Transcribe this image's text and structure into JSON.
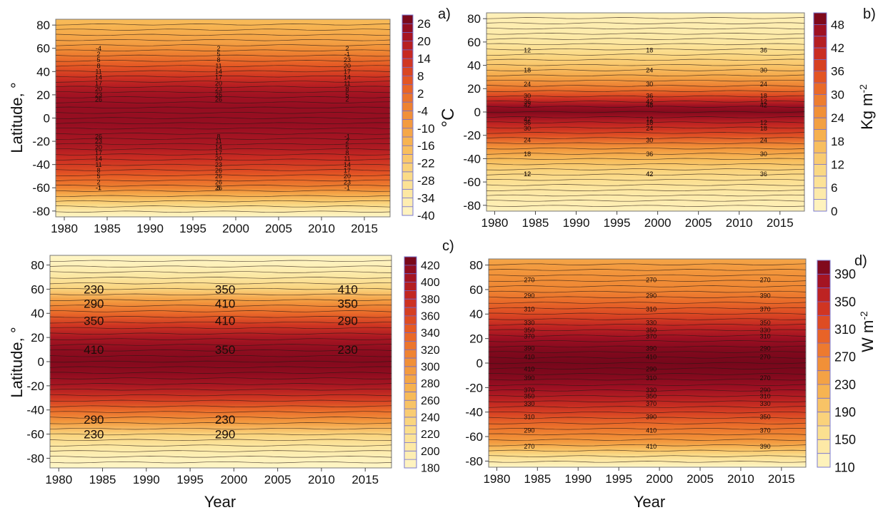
{
  "figure": {
    "panels": [
      {
        "id": "a",
        "panel_label": "a)",
        "ylabel": "Latitude, °",
        "xlabel": "",
        "colorbar_unit": "°C",
        "x_ticks": [
          "1980",
          "1985",
          "1990",
          "1995",
          "2000",
          "2005",
          "2010",
          "2015"
        ],
        "y_ticks": [
          "80",
          "60",
          "40",
          "20",
          "0",
          "-20",
          "-40",
          "-60",
          "-80"
        ],
        "colorbar_ticks": [
          "26",
          "20",
          "14",
          "8",
          "2",
          "-4",
          "-10",
          "-16",
          "-22",
          "-28",
          "-34",
          "-40"
        ],
        "contour_labels": [
          {
            "text": "-4"
          },
          {
            "text": "2"
          },
          {
            "text": "5"
          },
          {
            "text": "8"
          },
          {
            "text": "11"
          },
          {
            "text": "14"
          },
          {
            "text": "17"
          },
          {
            "text": "20"
          },
          {
            "text": "23"
          },
          {
            "text": "26"
          },
          {
            "text": "-1"
          },
          {
            "text": "2"
          },
          {
            "text": "5"
          },
          {
            "text": "8"
          },
          {
            "text": "11"
          },
          {
            "text": "14"
          },
          {
            "text": "17"
          },
          {
            "text": "20"
          },
          {
            "text": "23"
          },
          {
            "text": "26"
          },
          {
            "text": "-1"
          },
          {
            "text": "2"
          },
          {
            "text": "5"
          },
          {
            "text": "8"
          },
          {
            "text": "11"
          },
          {
            "text": "14"
          },
          {
            "text": "17"
          },
          {
            "text": "20"
          },
          {
            "text": "23"
          },
          {
            "text": "26"
          },
          {
            "text": "26"
          },
          {
            "text": "26"
          },
          {
            "text": "26"
          },
          {
            "text": "26"
          },
          {
            "text": "26"
          },
          {
            "text": "23"
          },
          {
            "text": "20"
          },
          {
            "text": "17"
          },
          {
            "text": "14"
          },
          {
            "text": "11"
          },
          {
            "text": "8"
          },
          {
            "text": "5"
          },
          {
            "text": "2"
          },
          {
            "text": "-1"
          },
          {
            "text": "23"
          },
          {
            "text": "20"
          },
          {
            "text": "17"
          },
          {
            "text": "14"
          },
          {
            "text": "11"
          },
          {
            "text": "8"
          },
          {
            "text": "5"
          },
          {
            "text": "2"
          },
          {
            "text": "-1"
          },
          {
            "text": "23"
          },
          {
            "text": "20"
          },
          {
            "text": "17"
          },
          {
            "text": "14"
          },
          {
            "text": "11"
          },
          {
            "text": "8"
          },
          {
            "text": "5"
          },
          {
            "text": "2"
          },
          {
            "text": "-1"
          }
        ]
      },
      {
        "id": "b",
        "panel_label": "b)",
        "ylabel": "",
        "xlabel": "",
        "colorbar_unit": "Kg m",
        "colorbar_unit_sup": "-2",
        "x_ticks": [
          "1980",
          "1985",
          "1990",
          "1995",
          "2000",
          "2005",
          "2010",
          "2015"
        ],
        "y_ticks": [
          "80",
          "60",
          "40",
          "20",
          "0",
          "-20",
          "-40",
          "-60",
          "-80"
        ],
        "colorbar_ticks": [
          "48",
          "42",
          "36",
          "30",
          "24",
          "18",
          "12",
          "6",
          "0"
        ],
        "contour_labels": [
          {
            "text": "12"
          },
          {
            "text": "18"
          },
          {
            "text": "24"
          },
          {
            "text": "30"
          },
          {
            "text": "36"
          },
          {
            "text": "42"
          },
          {
            "text": "12"
          },
          {
            "text": "18"
          },
          {
            "text": "24"
          },
          {
            "text": "30"
          },
          {
            "text": "36"
          },
          {
            "text": "42"
          },
          {
            "text": "12"
          },
          {
            "text": "18"
          },
          {
            "text": "24"
          },
          {
            "text": "30"
          },
          {
            "text": "36"
          },
          {
            "text": "42"
          },
          {
            "text": "48"
          },
          {
            "text": "42"
          },
          {
            "text": "36"
          },
          {
            "text": "30"
          },
          {
            "text": "24"
          },
          {
            "text": "18"
          },
          {
            "text": "12"
          },
          {
            "text": "42"
          },
          {
            "text": "36"
          },
          {
            "text": "30"
          },
          {
            "text": "24"
          },
          {
            "text": "18"
          },
          {
            "text": "12"
          },
          {
            "text": "42"
          },
          {
            "text": "36"
          },
          {
            "text": "30"
          },
          {
            "text": "24"
          },
          {
            "text": "18"
          },
          {
            "text": "12"
          }
        ]
      },
      {
        "id": "c",
        "panel_label": "c)",
        "ylabel": "Latitude, °",
        "xlabel": "Year",
        "colorbar_unit": "",
        "x_ticks": [
          "1980",
          "1985",
          "1990",
          "1995",
          "2000",
          "2005",
          "2010",
          "2015"
        ],
        "y_ticks": [
          "80",
          "60",
          "40",
          "20",
          "0",
          "-20",
          "-40",
          "-60",
          "-80"
        ],
        "colorbar_ticks": [
          "420",
          "400",
          "380",
          "360",
          "340",
          "320",
          "300",
          "280",
          "260",
          "240",
          "220",
          "200",
          "180"
        ],
        "contour_labels": [
          {
            "text": "230"
          },
          {
            "text": "290"
          },
          {
            "text": "350"
          },
          {
            "text": "410"
          },
          {
            "text": "230"
          },
          {
            "text": "290"
          },
          {
            "text": "350"
          },
          {
            "text": "410"
          },
          {
            "text": "410"
          },
          {
            "text": "350"
          },
          {
            "text": "290"
          },
          {
            "text": "230"
          },
          {
            "text": "410"
          },
          {
            "text": "350"
          },
          {
            "text": "290"
          },
          {
            "text": "230"
          }
        ]
      },
      {
        "id": "d",
        "panel_label": "d)",
        "ylabel": "",
        "xlabel": "Year",
        "colorbar_unit": "W m",
        "colorbar_unit_sup": "-2",
        "x_ticks": [
          "1980",
          "1985",
          "1990",
          "1995",
          "2000",
          "2005",
          "2010",
          "2015"
        ],
        "y_ticks": [
          "80",
          "60",
          "40",
          "20",
          "0",
          "-20",
          "-40",
          "-60",
          "-80"
        ],
        "colorbar_ticks": [
          "390",
          "350",
          "310",
          "270",
          "230",
          "190",
          "150",
          "110"
        ],
        "contour_labels": [
          {
            "text": "270"
          },
          {
            "text": "290"
          },
          {
            "text": "310"
          },
          {
            "text": "330"
          },
          {
            "text": "350"
          },
          {
            "text": "370"
          },
          {
            "text": "390"
          },
          {
            "text": "410"
          },
          {
            "text": "270"
          },
          {
            "text": "290"
          },
          {
            "text": "310"
          },
          {
            "text": "330"
          },
          {
            "text": "350"
          },
          {
            "text": "370"
          },
          {
            "text": "390"
          },
          {
            "text": "410"
          },
          {
            "text": "270"
          },
          {
            "text": "290"
          },
          {
            "text": "310"
          },
          {
            "text": "330"
          },
          {
            "text": "350"
          },
          {
            "text": "370"
          },
          {
            "text": "390"
          },
          {
            "text": "410"
          },
          {
            "text": "410"
          },
          {
            "text": "410"
          },
          {
            "text": "390"
          },
          {
            "text": "370"
          },
          {
            "text": "350"
          },
          {
            "text": "330"
          },
          {
            "text": "310"
          },
          {
            "text": "290"
          },
          {
            "text": "270"
          },
          {
            "text": "390"
          },
          {
            "text": "370"
          },
          {
            "text": "350"
          },
          {
            "text": "330"
          },
          {
            "text": "310"
          },
          {
            "text": "290"
          },
          {
            "text": "270"
          },
          {
            "text": "390"
          },
          {
            "text": "370"
          },
          {
            "text": "350"
          },
          {
            "text": "330"
          },
          {
            "text": "310"
          },
          {
            "text": "290"
          },
          {
            "text": "270"
          }
        ]
      }
    ]
  },
  "chart_data": [
    {
      "type": "heatmap",
      "panel": "a)",
      "title": "",
      "xlabel": "",
      "ylabel": "Latitude, °",
      "colorbar_label": "°C",
      "xlim": [
        1979,
        2018
      ],
      "ylim": [
        -85,
        85
      ],
      "clim": [
        -40,
        32
      ],
      "latitude_profile": {
        "lat": [
          -85,
          -80,
          -75,
          -70,
          -65,
          -60,
          -55,
          -50,
          -45,
          -40,
          -35,
          -30,
          -25,
          -20,
          -15,
          -10,
          -5,
          0,
          5,
          10,
          15,
          20,
          25,
          30,
          35,
          40,
          45,
          50,
          55,
          60,
          65,
          70,
          75,
          80,
          85
        ],
        "value": [
          -40,
          -34,
          -26,
          -18,
          -10,
          -1,
          3,
          7,
          11,
          14,
          17,
          20,
          23,
          24,
          25,
          26,
          27,
          27,
          27,
          27,
          26,
          25,
          23,
          20,
          16,
          12,
          8,
          4,
          0,
          -4,
          -8,
          -10,
          -12,
          -14,
          -16
        ]
      },
      "contour_levels": [
        -4,
        -1,
        2,
        5,
        8,
        11,
        14,
        17,
        20,
        23,
        26
      ],
      "colors": {
        "low": "#fdf3c0",
        "high": "#7a0618"
      }
    },
    {
      "type": "heatmap",
      "panel": "b)",
      "title": "",
      "xlabel": "",
      "ylabel": "",
      "colorbar_label": "Kg m-2",
      "xlim": [
        1979,
        2018
      ],
      "ylim": [
        -85,
        85
      ],
      "clim": [
        0,
        52
      ],
      "latitude_profile": {
        "lat": [
          -85,
          -80,
          -70,
          -60,
          -50,
          -40,
          -30,
          -20,
          -15,
          -10,
          -5,
          0,
          5,
          10,
          15,
          20,
          30,
          40,
          50,
          60,
          70,
          80,
          85
        ],
        "value": [
          2,
          3,
          5,
          8,
          12,
          18,
          26,
          36,
          40,
          43,
          47,
          50,
          48,
          42,
          36,
          30,
          22,
          15,
          10,
          6,
          4,
          3,
          2
        ]
      },
      "contour_levels": [
        12,
        18,
        24,
        30,
        36,
        42,
        48
      ],
      "colors": {
        "low": "#fdf3c0",
        "high": "#7a0618"
      }
    },
    {
      "type": "heatmap",
      "panel": "c)",
      "title": "",
      "xlabel": "Year",
      "ylabel": "Latitude, °",
      "colorbar_label": "",
      "xlim": [
        1979,
        2018
      ],
      "ylim": [
        -88,
        88
      ],
      "clim": [
        170,
        430
      ],
      "latitude_profile": {
        "lat": [
          -88,
          -80,
          -70,
          -60,
          -50,
          -40,
          -30,
          -20,
          -10,
          0,
          10,
          20,
          30,
          40,
          50,
          60,
          70,
          80,
          88
        ],
        "value": [
          170,
          180,
          200,
          230,
          290,
          330,
          370,
          400,
          415,
          420,
          415,
          400,
          370,
          330,
          290,
          230,
          200,
          180,
          170
        ]
      },
      "contour_levels": [
        230,
        290,
        350,
        410
      ],
      "colors": {
        "low": "#fdf3c0",
        "high": "#7a0618"
      }
    },
    {
      "type": "heatmap",
      "panel": "d)",
      "title": "",
      "xlabel": "Year",
      "ylabel": "",
      "colorbar_label": "W m-2",
      "xlim": [
        1979,
        2018
      ],
      "ylim": [
        -85,
        85
      ],
      "clim": [
        110,
        420
      ],
      "latitude_profile": {
        "lat": [
          -85,
          -80,
          -75,
          -70,
          -65,
          -60,
          -50,
          -40,
          -30,
          -20,
          -10,
          0,
          10,
          20,
          30,
          40,
          50,
          60,
          70,
          80,
          85
        ],
        "value": [
          110,
          140,
          170,
          210,
          250,
          270,
          300,
          340,
          370,
          395,
          410,
          415,
          410,
          395,
          365,
          330,
          300,
          275,
          265,
          250,
          240
        ]
      },
      "contour_levels": [
        270,
        290,
        310,
        330,
        350,
        370,
        390,
        410
      ],
      "colors": {
        "low": "#fdf3c0",
        "high": "#7a0618"
      }
    }
  ]
}
